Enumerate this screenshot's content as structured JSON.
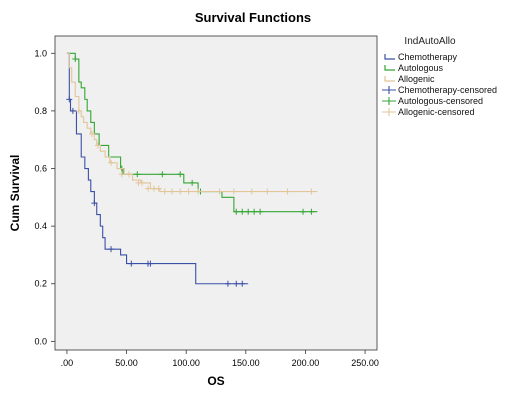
{
  "chart_data": {
    "type": "line",
    "title": "Survival Functions",
    "xlabel": "OS",
    "ylabel": "Cum Survival",
    "xlim": [
      -10,
      260
    ],
    "ylim": [
      -0.03,
      1.06
    ],
    "x_ticks": [
      ".00",
      "50.00",
      "100.00",
      "150.00",
      "200.00",
      "250.00"
    ],
    "x_tick_values": [
      0,
      50,
      100,
      150,
      200,
      250
    ],
    "y_ticks": [
      "0.0",
      "0.2",
      "0.4",
      "0.6",
      "0.8",
      "1.0"
    ],
    "y_tick_values": [
      0,
      0.2,
      0.4,
      0.6,
      0.8,
      1.0
    ],
    "grid": false,
    "legend_position": "right",
    "legend_title": "IndAutoAllo",
    "legend_entries": [
      "Chemotherapy",
      "Autologous",
      "Allogenic",
      "Chemotherapy-censored",
      "Autologous-censored",
      "Allogenic-censored"
    ],
    "colors": {
      "plot_background": "#f0f0f0",
      "Chemotherapy": "#3a50a6",
      "Autologous": "#34a534",
      "Allogenic": "#e2c59a"
    },
    "series": [
      {
        "name": "Chemotherapy",
        "steps": [
          [
            0,
            1.0
          ],
          [
            2,
            0.84
          ],
          [
            3,
            0.8
          ],
          [
            6,
            0.8
          ],
          [
            8,
            0.72
          ],
          [
            12,
            0.64
          ],
          [
            15,
            0.6
          ],
          [
            18,
            0.56
          ],
          [
            20,
            0.52
          ],
          [
            23,
            0.48
          ],
          [
            25,
            0.44
          ],
          [
            28,
            0.4
          ],
          [
            30,
            0.36
          ],
          [
            32,
            0.32
          ],
          [
            45,
            0.3
          ],
          [
            50,
            0.27
          ],
          [
            104,
            0.27
          ],
          [
            108,
            0.2
          ],
          [
            152,
            0.2
          ]
        ],
        "censored": [
          [
            2,
            0.84
          ],
          [
            5,
            0.8
          ],
          [
            23,
            0.48
          ],
          [
            37,
            0.32
          ],
          [
            54,
            0.27
          ],
          [
            68,
            0.27
          ],
          [
            70,
            0.27
          ],
          [
            135,
            0.2
          ],
          [
            142,
            0.2
          ],
          [
            147,
            0.2
          ]
        ]
      },
      {
        "name": "Autologous",
        "steps": [
          [
            0,
            1.0
          ],
          [
            7,
            0.98
          ],
          [
            10,
            0.9
          ],
          [
            12,
            0.88
          ],
          [
            15,
            0.84
          ],
          [
            17,
            0.8
          ],
          [
            20,
            0.76
          ],
          [
            23,
            0.72
          ],
          [
            27,
            0.68
          ],
          [
            35,
            0.64
          ],
          [
            45,
            0.6
          ],
          [
            47,
            0.58
          ],
          [
            95,
            0.58
          ],
          [
            98,
            0.55
          ],
          [
            110,
            0.52
          ],
          [
            130,
            0.5
          ],
          [
            140,
            0.45
          ],
          [
            210,
            0.45
          ]
        ],
        "censored": [
          [
            7,
            0.98
          ],
          [
            46,
            0.6
          ],
          [
            59,
            0.58
          ],
          [
            80,
            0.58
          ],
          [
            95,
            0.58
          ],
          [
            105,
            0.55
          ],
          [
            112,
            0.52
          ],
          [
            142,
            0.45
          ],
          [
            147,
            0.45
          ],
          [
            152,
            0.45
          ],
          [
            157,
            0.45
          ],
          [
            162,
            0.45
          ],
          [
            198,
            0.45
          ],
          [
            205,
            0.45
          ]
        ]
      },
      {
        "name": "Allogenic",
        "steps": [
          [
            0,
            1.0
          ],
          [
            2,
            0.95
          ],
          [
            4,
            0.9
          ],
          [
            7,
            0.85
          ],
          [
            10,
            0.8
          ],
          [
            12,
            0.78
          ],
          [
            14,
            0.76
          ],
          [
            17,
            0.74
          ],
          [
            20,
            0.72
          ],
          [
            23,
            0.7
          ],
          [
            25,
            0.68
          ],
          [
            28,
            0.66
          ],
          [
            32,
            0.64
          ],
          [
            36,
            0.62
          ],
          [
            42,
            0.6
          ],
          [
            48,
            0.58
          ],
          [
            55,
            0.56
          ],
          [
            62,
            0.55
          ],
          [
            70,
            0.53
          ],
          [
            78,
            0.52
          ],
          [
            210,
            0.52
          ]
        ],
        "censored": [
          [
            10,
            0.8
          ],
          [
            21,
            0.72
          ],
          [
            26,
            0.68
          ],
          [
            37,
            0.62
          ],
          [
            46,
            0.58
          ],
          [
            52,
            0.58
          ],
          [
            60,
            0.55
          ],
          [
            63,
            0.55
          ],
          [
            68,
            0.53
          ],
          [
            73,
            0.53
          ],
          [
            77,
            0.53
          ],
          [
            82,
            0.52
          ],
          [
            88,
            0.52
          ],
          [
            95,
            0.52
          ],
          [
            102,
            0.52
          ],
          [
            110,
            0.52
          ],
          [
            128,
            0.52
          ],
          [
            140,
            0.52
          ],
          [
            155,
            0.52
          ],
          [
            168,
            0.52
          ],
          [
            185,
            0.52
          ],
          [
            205,
            0.52
          ]
        ]
      }
    ]
  }
}
